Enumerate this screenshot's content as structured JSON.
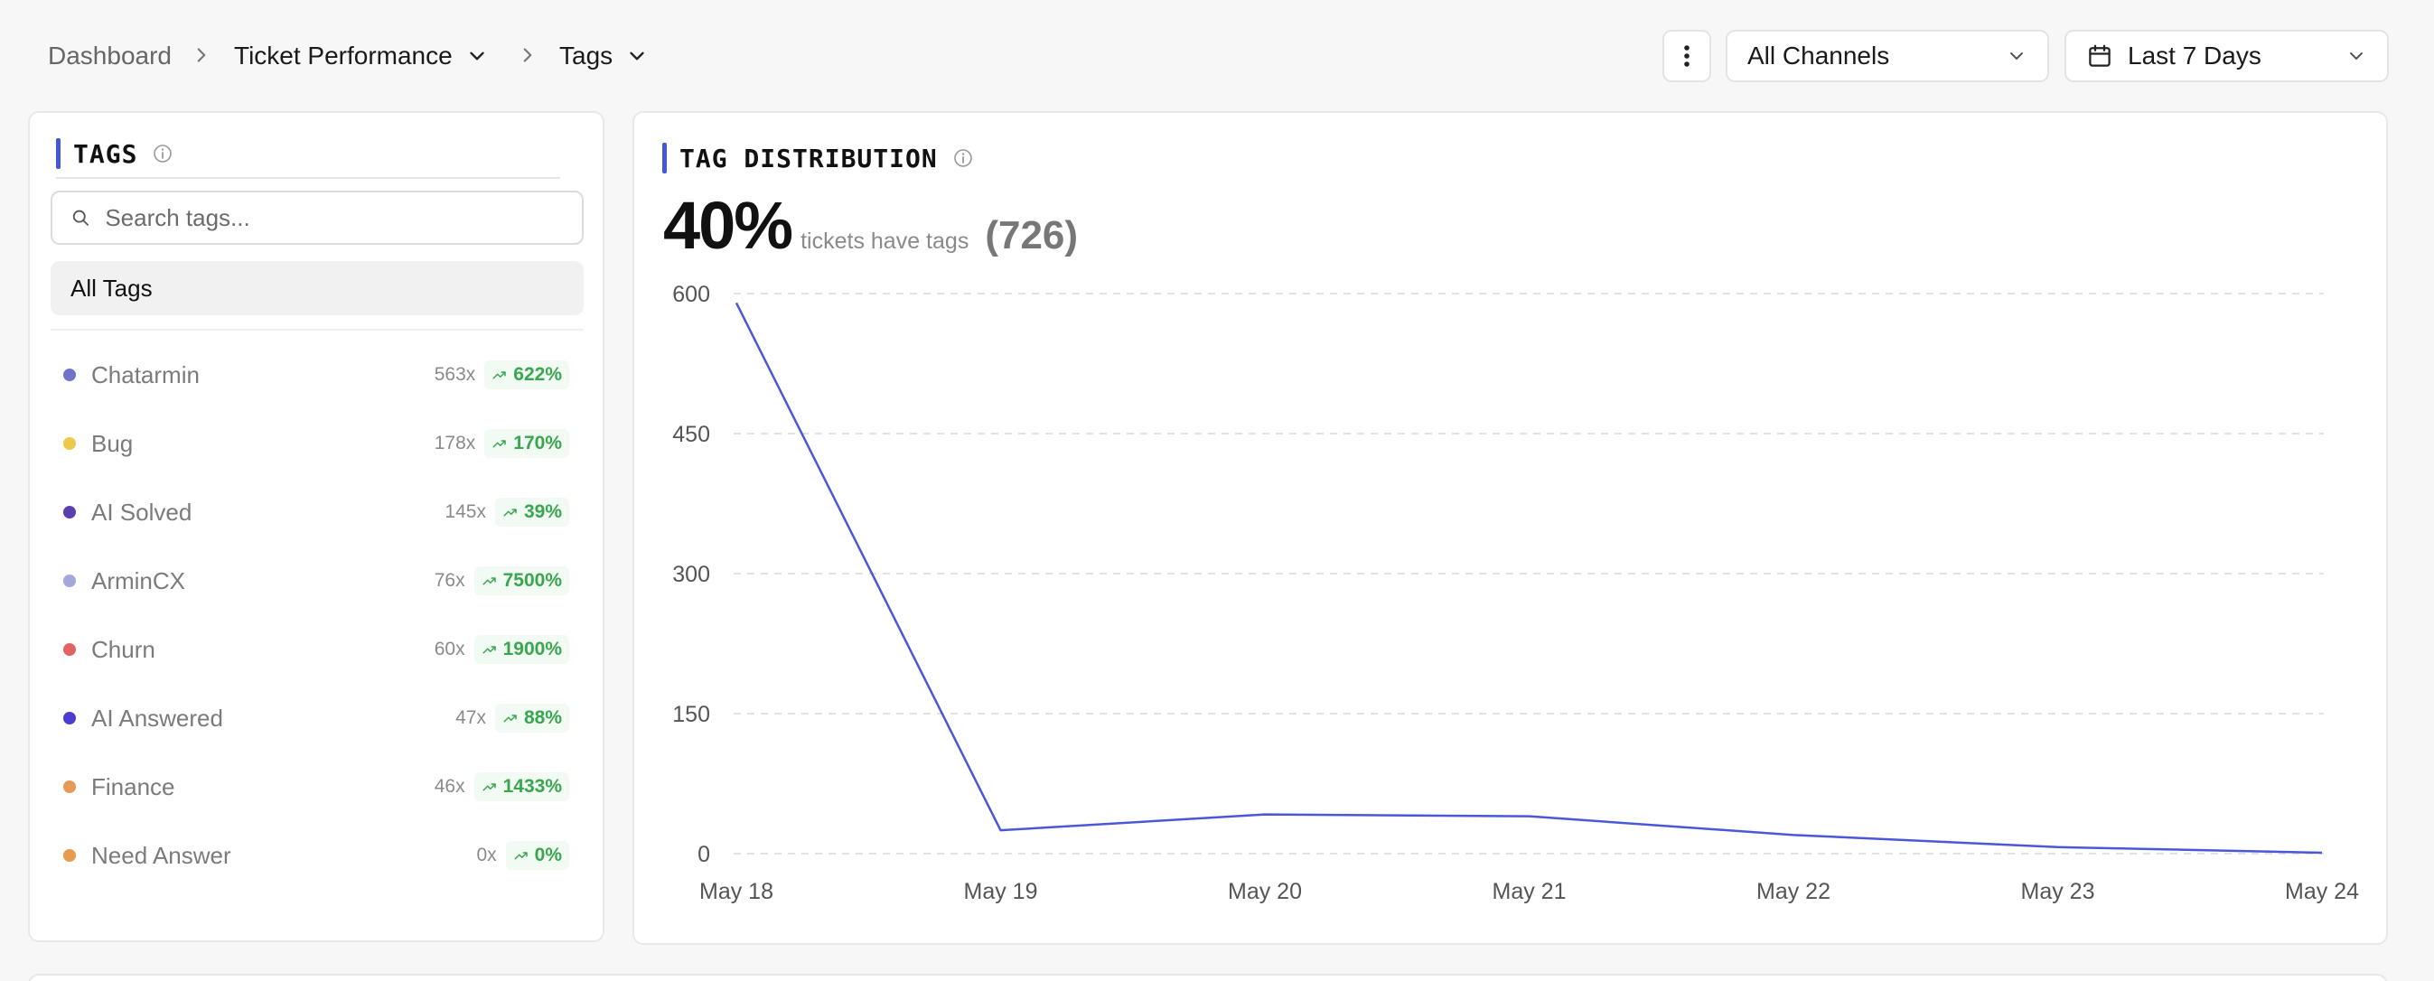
{
  "breadcrumb": {
    "items": [
      "Dashboard",
      "Ticket Performance",
      "Tags"
    ]
  },
  "filters": {
    "channel": "All Channels",
    "date_range": "Last 7 Days"
  },
  "tags_panel": {
    "title": "TAGS",
    "search_placeholder": "Search tags...",
    "all_tags_label": "All Tags",
    "tags": [
      {
        "name": "Chatarmin",
        "count": "563x",
        "change": "622%",
        "color": "#6e75c8"
      },
      {
        "name": "Bug",
        "count": "178x",
        "change": "170%",
        "color": "#ecc94b"
      },
      {
        "name": "AI Solved",
        "count": "145x",
        "change": "39%",
        "color": "#5b3fb0"
      },
      {
        "name": "ArminCX",
        "count": "76x",
        "change": "7500%",
        "color": "#a3a8d8"
      },
      {
        "name": "Churn",
        "count": "60x",
        "change": "1900%",
        "color": "#e06464"
      },
      {
        "name": "AI Answered",
        "count": "47x",
        "change": "88%",
        "color": "#4b3dd1"
      },
      {
        "name": "Finance",
        "count": "46x",
        "change": "1433%",
        "color": "#e59a55"
      },
      {
        "name": "Need Answer",
        "count": "0x",
        "change": "0%",
        "color": "#e89a4e"
      }
    ]
  },
  "distribution": {
    "title": "TAG DISTRIBUTION",
    "percent": "40%",
    "caption": "tickets have tags",
    "count": "(726)"
  },
  "chart_data": {
    "type": "line",
    "categories": [
      "May 18",
      "May 19",
      "May 20",
      "May 21",
      "May 22",
      "May 23",
      "May 24"
    ],
    "series": [
      {
        "values": [
          590,
          25,
          42,
          40,
          20,
          7,
          1
        ],
        "color": "#4a58d8"
      }
    ],
    "yticks": [
      0,
      150,
      300,
      450,
      600
    ],
    "ylim": [
      0,
      600
    ],
    "grid": true
  }
}
